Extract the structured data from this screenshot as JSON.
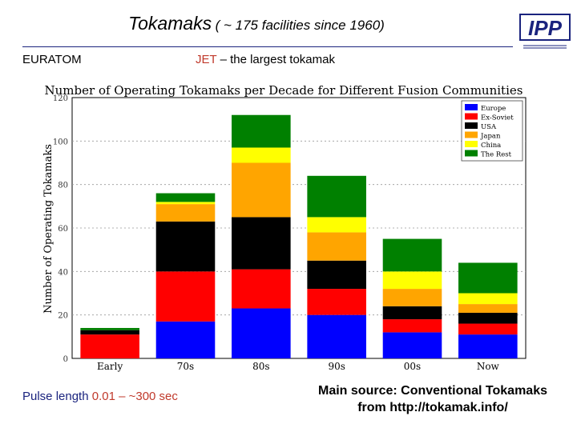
{
  "slide": {
    "title_main": "Tokamaks",
    "title_sub": "( ~ 175 facilities since 1960)",
    "org_label": "EURATOM",
    "jet_prefix": "JET",
    "jet_suffix": " – the largest tokamak",
    "pulse_prefix": "Pulse length ",
    "pulse_value": "0.01 – ~300 sec",
    "source_line1": "Main source: Conventional Tokamaks",
    "source_line2": "from http://tokamak.info/",
    "logo_text": "IPP",
    "accent_color": "#1a237e"
  },
  "chart_data": {
    "type": "bar",
    "stacked": true,
    "title": "Number of Operating Tokamaks per Decade for Different Fusion Communities",
    "xlabel": "",
    "ylabel": "Number of Operating Tokamaks",
    "ylim": [
      0,
      120
    ],
    "yticks": [
      0,
      20,
      40,
      60,
      80,
      100,
      120
    ],
    "grid": true,
    "legend_position": "top-right",
    "categories": [
      "Early",
      "70s",
      "80s",
      "90s",
      "00s",
      "Now"
    ],
    "series": [
      {
        "name": "Europe",
        "color": "#0000ff",
        "values": [
          0,
          17,
          23,
          20,
          12,
          11
        ]
      },
      {
        "name": "Ex-Soviet",
        "color": "#ff0000",
        "values": [
          11,
          23,
          18,
          12,
          6,
          5
        ]
      },
      {
        "name": "USA",
        "color": "#000000",
        "values": [
          2,
          23,
          24,
          13,
          6,
          5
        ]
      },
      {
        "name": "Japan",
        "color": "#ffa500",
        "values": [
          0,
          8,
          25,
          13,
          8,
          4
        ]
      },
      {
        "name": "China",
        "color": "#ffff00",
        "values": [
          0,
          1,
          7,
          7,
          8,
          5
        ]
      },
      {
        "name": "The Rest",
        "color": "#008000",
        "values": [
          1,
          4,
          15,
          19,
          15,
          14
        ]
      }
    ]
  }
}
